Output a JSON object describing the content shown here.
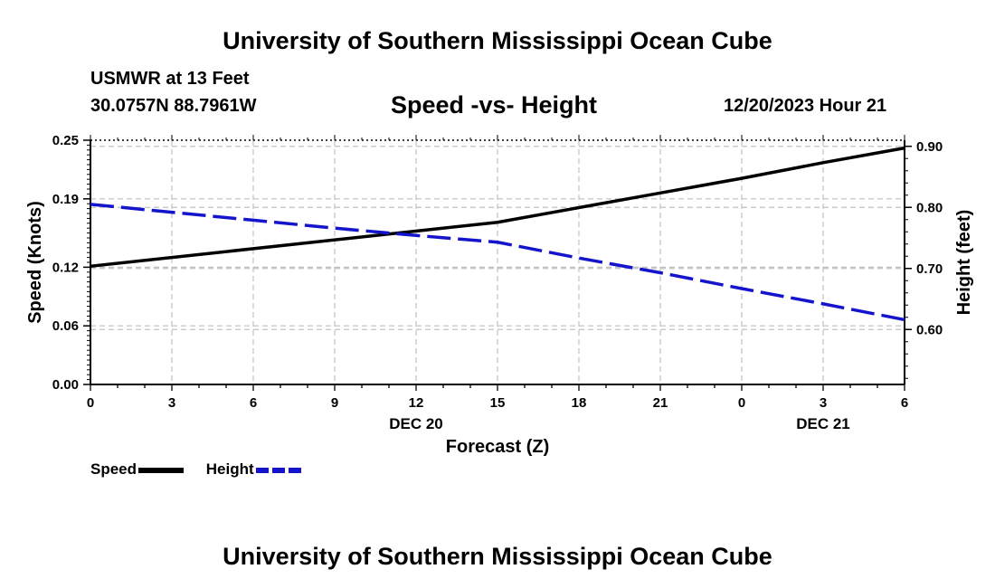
{
  "header": {
    "title": "University of Southern Mississippi Ocean Cube",
    "station": "USMWR at 13 Feet",
    "coords": "30.0757N  88.7961W",
    "chart_title": "Speed -vs- Height",
    "date": "12/20/2023 Hour 21"
  },
  "footer": {
    "title": "University of Southern Mississippi Ocean Cube"
  },
  "legend": {
    "speed_label": "Speed",
    "height_label": "Height"
  },
  "colors": {
    "speed": "#000000",
    "height": "#1414cc",
    "grid": "#c0c0c0"
  },
  "chart_data": {
    "type": "line",
    "title": "Speed -vs- Height",
    "xlabel": "Forecast (Z)",
    "ylabel": "Speed (Knots)",
    "y2label": "Height (feet)",
    "x": [
      0,
      3,
      6,
      9,
      12,
      15,
      18,
      21,
      24,
      27,
      30
    ],
    "xlim": [
      0,
      30
    ],
    "x_tick_labels": [
      "0",
      "3",
      "6",
      "9",
      "12",
      "15",
      "18",
      "21",
      "0",
      "3",
      "6"
    ],
    "date_labels": [
      {
        "x": 12,
        "label": "DEC 20"
      },
      {
        "x": 27,
        "label": "DEC 21"
      }
    ],
    "ylim": [
      0,
      0.25
    ],
    "y_ticks": [
      0.0,
      0.06,
      0.12,
      0.19,
      0.25
    ],
    "y_tick_labels": [
      "0.00",
      "0.06",
      "0.12",
      "0.19",
      "0.25"
    ],
    "y2lim": [
      0.51,
      0.91
    ],
    "y2_ticks": [
      0.6,
      0.7,
      0.8,
      0.9
    ],
    "y2_tick_labels": [
      "0.60",
      "0.70",
      "0.80",
      "0.90"
    ],
    "grid": true,
    "series": [
      {
        "name": "Speed",
        "axis": "left",
        "style": "solid",
        "x": [
          0,
          15,
          18,
          21,
          24,
          27,
          30
        ],
        "values": [
          0.121,
          0.166,
          0.181,
          0.196,
          0.211,
          0.227,
          0.242
        ]
      },
      {
        "name": "Height",
        "axis": "right",
        "style": "dashed",
        "x": [
          0,
          3,
          6,
          9,
          12,
          15,
          18,
          21,
          24,
          27,
          30
        ],
        "values": [
          0.805,
          0.792,
          0.779,
          0.766,
          0.754,
          0.743,
          0.717,
          0.693,
          0.667,
          0.642,
          0.616
        ]
      }
    ]
  }
}
